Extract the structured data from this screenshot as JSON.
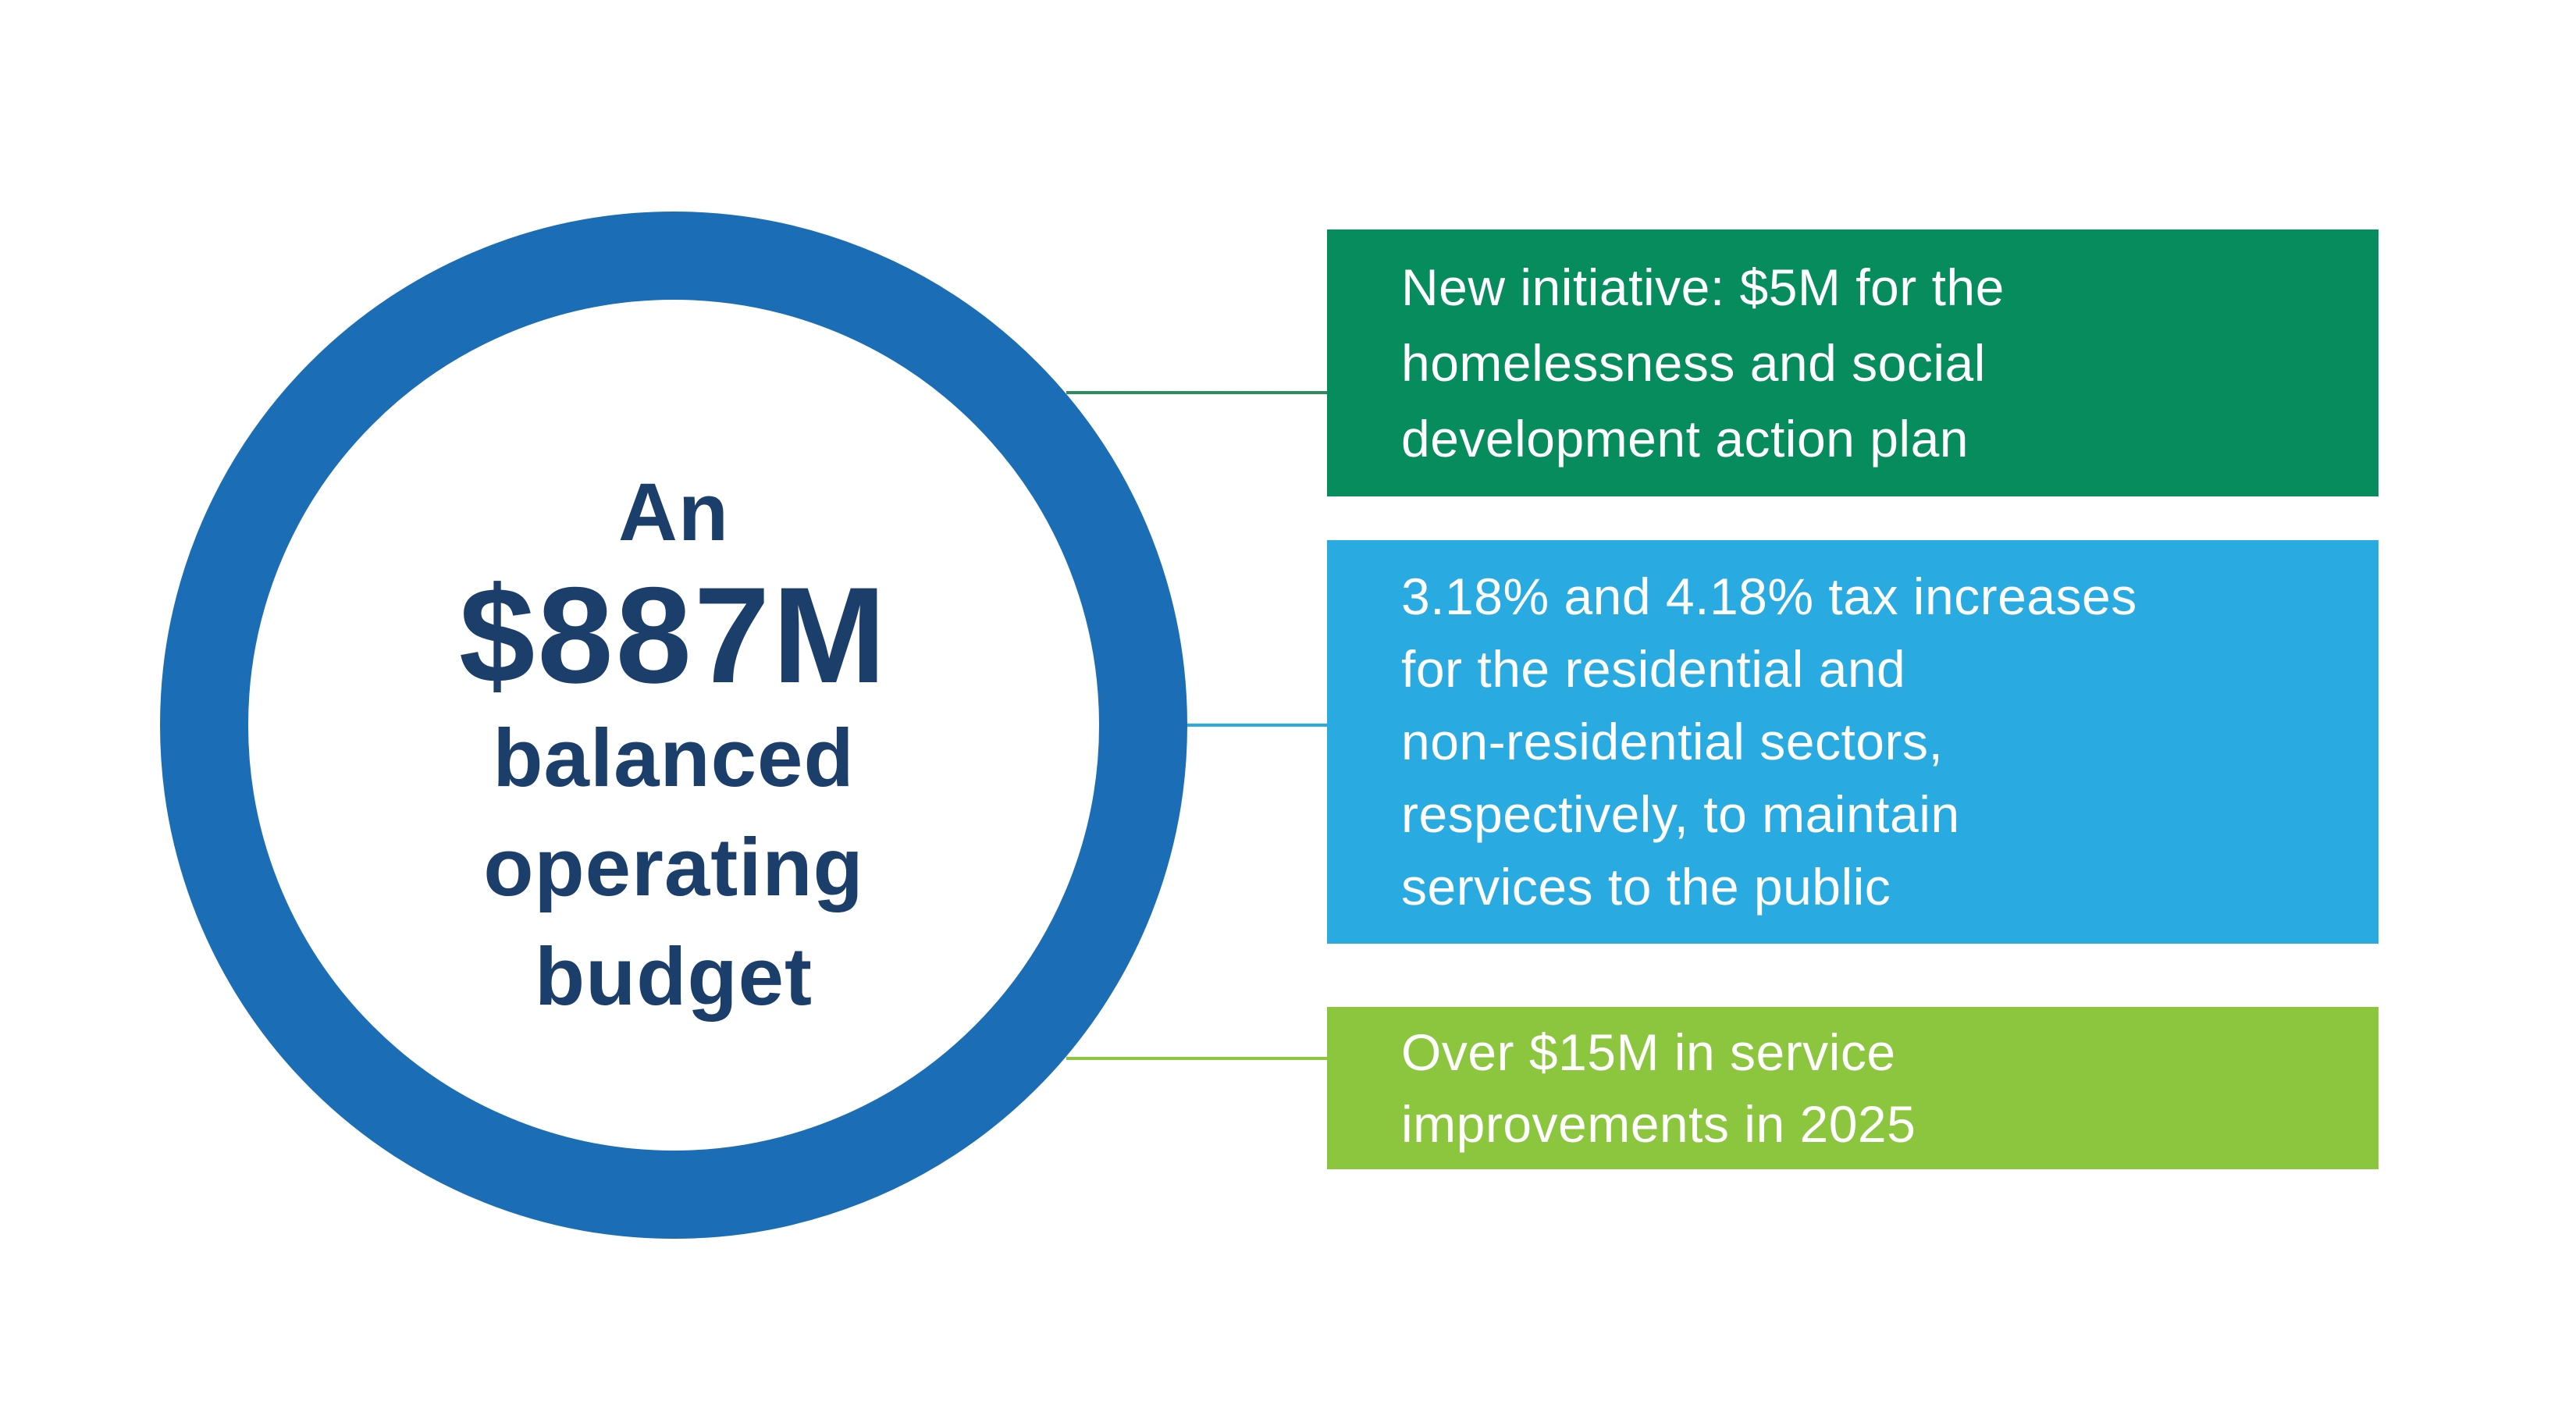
{
  "circle": {
    "lines": [
      "An",
      "$887M",
      "balanced",
      "operating",
      "budget"
    ],
    "amount": "$887M",
    "description": "An $887M balanced operating budget"
  },
  "boxes": [
    {
      "id": "new-initiative",
      "lines": [
        "New initiative: $5M for the",
        "homelessness and social",
        "development action plan"
      ]
    },
    {
      "id": "tax-increases",
      "lines": [
        "3.18% and 4.18% tax increases",
        "for the residential and",
        "non-residential sectors,",
        "respectively, to maintain",
        "services to the public"
      ]
    },
    {
      "id": "service-improvements",
      "lines": [
        "Over $15M in service",
        "improvements in 2025"
      ]
    }
  ],
  "colors": {
    "ring_blue": "#1B6EB5",
    "navy_text": "#1C3E6B",
    "box_dark_green": "#068C5D",
    "box_cyan": "#29ABE2",
    "box_light_green": "#8CC63E",
    "connector_green": "#2F8C5C",
    "connector_cyan": "#29ABE2",
    "connector_light_green": "#8CC63E",
    "text_on_boxes": "#FFFFFF",
    "background": "#FFFFFF"
  }
}
